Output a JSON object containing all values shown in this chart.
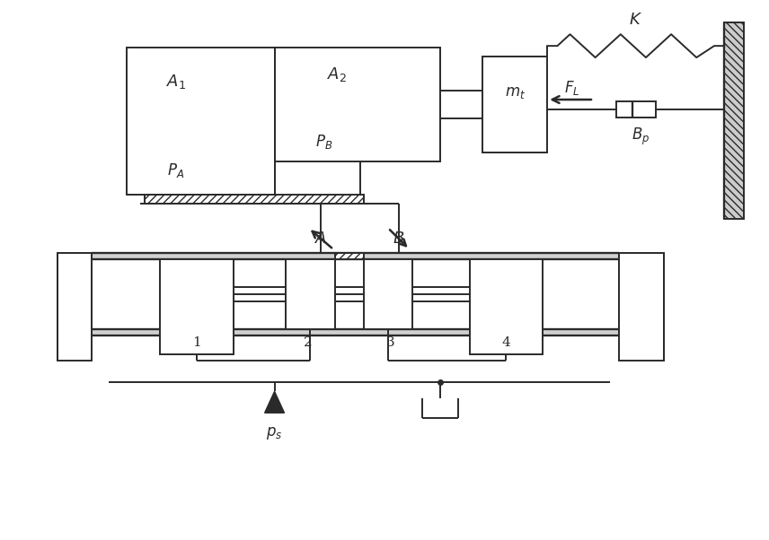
{
  "fig_width": 8.56,
  "fig_height": 6.02,
  "lc": "#2a2a2a",
  "lw": 1.4,
  "bg": "white"
}
